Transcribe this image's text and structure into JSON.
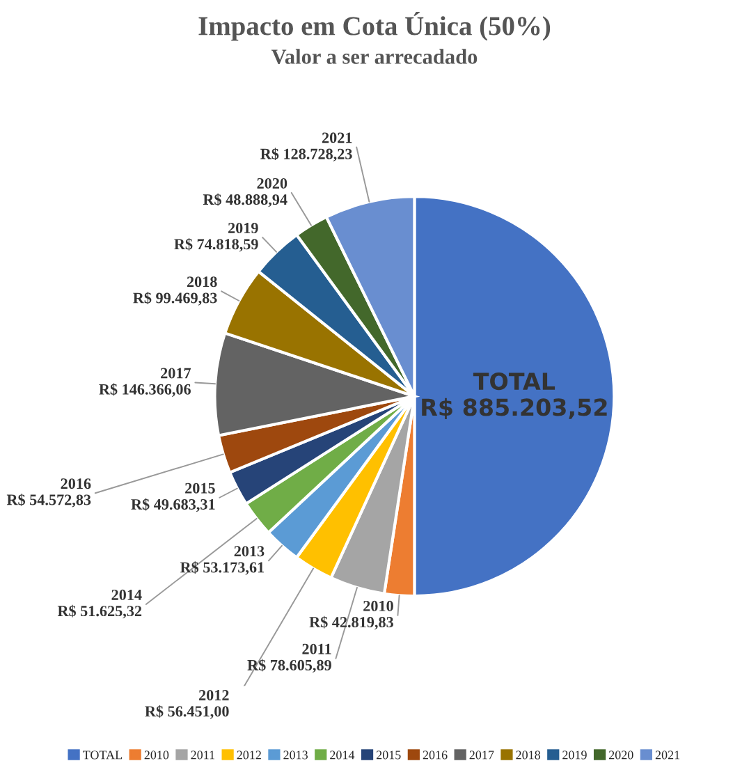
{
  "chart_data": {
    "type": "pie",
    "title": "Impacto em Cota Única (50%)",
    "subtitle": "Valor a ser arrecadado",
    "categories": [
      "TOTAL",
      "2010",
      "2011",
      "2012",
      "2013",
      "2014",
      "2015",
      "2016",
      "2017",
      "2018",
      "2019",
      "2020",
      "2021"
    ],
    "values": [
      885203.52,
      42819.83,
      78605.89,
      56451.0,
      53173.61,
      51625.32,
      49683.31,
      54572.83,
      146366.06,
      99469.83,
      74818.59,
      48888.94,
      128728.23
    ],
    "value_labels": [
      "R$ 885.203,52",
      "R$ 42.819,83",
      "R$ 78.605,89",
      "R$ 56.451,00",
      "R$ 53.173,61",
      "R$ 51.625,32",
      "R$ 49.683,31",
      "R$ 54.572,83",
      "R$ 146.366,06",
      "R$ 99.469,83",
      "R$ 74.818,59",
      "R$ 48.888,94",
      "R$ 128.728,23"
    ],
    "colors": [
      "#4472c4",
      "#ed7d31",
      "#a5a5a5",
      "#ffc000",
      "#5b9bd5",
      "#70ad47",
      "#264478",
      "#9e480e",
      "#636363",
      "#997300",
      "#255e91",
      "#43682b",
      "#698ed0"
    ],
    "legend": "bottom"
  }
}
